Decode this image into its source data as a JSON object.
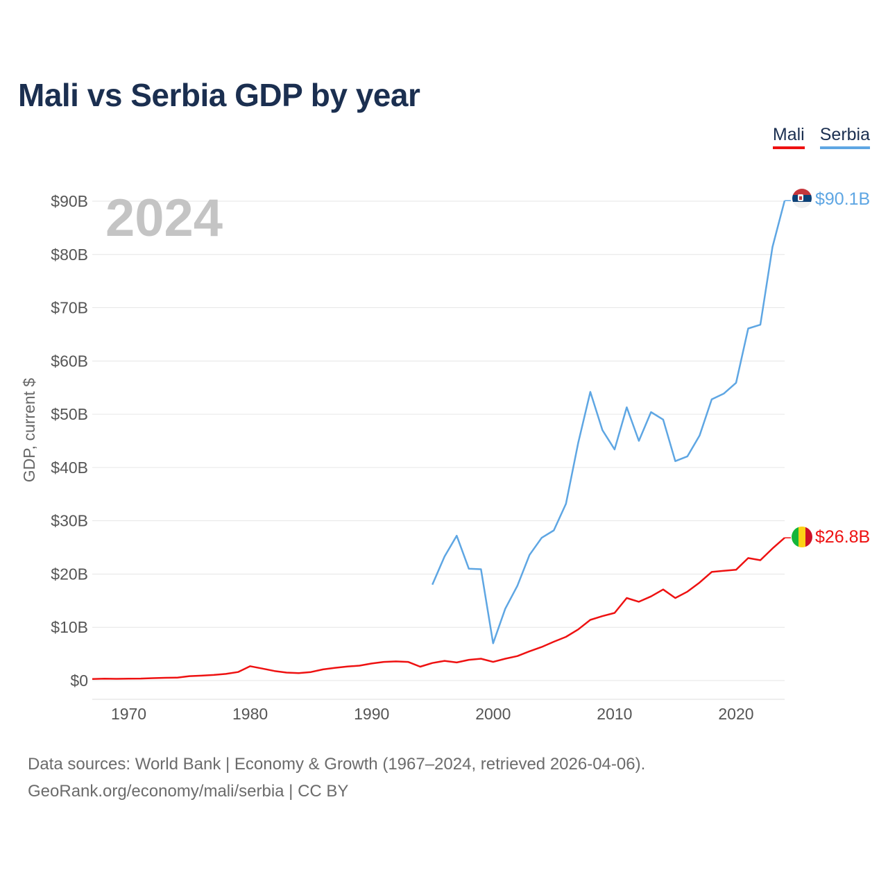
{
  "title": "Mali vs Serbia GDP by year",
  "source": {
    "line1": "Data sources: World Bank | Economy & Growth (1967–2024, retrieved 2026-04-06).",
    "line2": "GeoRank.org/economy/mali/serbia | CC BY"
  },
  "chart_data": {
    "type": "line",
    "title": "Mali vs Serbia GDP by year",
    "ylabel": "GDP, current $",
    "xlabel": "",
    "year_label": "2024",
    "xlim": [
      1967,
      2024
    ],
    "ylim": [
      0,
      90
    ],
    "y_unit": "billion current US$",
    "x_ticks": [
      1970,
      1980,
      1990,
      2000,
      2010,
      2020
    ],
    "y_ticks": [
      0,
      10,
      20,
      30,
      40,
      50,
      60,
      70,
      80,
      90
    ],
    "y_tick_labels": [
      "$0",
      "$10B",
      "$20B",
      "$30B",
      "$40B",
      "$50B",
      "$60B",
      "$70B",
      "$80B",
      "$90B"
    ],
    "grid": true,
    "legend": "top-right",
    "series": [
      {
        "name": "Mali",
        "color": "#ee1111",
        "end_label": "$26.8B",
        "flag": "mali-flag",
        "x": [
          1967,
          1968,
          1969,
          1970,
          1971,
          1972,
          1973,
          1974,
          1975,
          1976,
          1977,
          1978,
          1979,
          1980,
          1981,
          1982,
          1983,
          1984,
          1985,
          1986,
          1987,
          1988,
          1989,
          1990,
          1991,
          1992,
          1993,
          1994,
          1995,
          1996,
          1997,
          1998,
          1999,
          2000,
          2001,
          2002,
          2003,
          2004,
          2005,
          2006,
          2007,
          2008,
          2009,
          2010,
          2011,
          2012,
          2013,
          2014,
          2015,
          2016,
          2017,
          2018,
          2019,
          2020,
          2021,
          2022,
          2023,
          2024
        ],
        "values": [
          0.3,
          0.35,
          0.33,
          0.35,
          0.38,
          0.45,
          0.52,
          0.55,
          0.83,
          0.92,
          1.05,
          1.25,
          1.6,
          2.7,
          2.25,
          1.8,
          1.5,
          1.4,
          1.6,
          2.1,
          2.4,
          2.65,
          2.8,
          3.2,
          3.5,
          3.6,
          3.5,
          2.6,
          3.3,
          3.7,
          3.4,
          3.9,
          4.1,
          3.5,
          4.1,
          4.6,
          5.5,
          6.3,
          7.3,
          8.2,
          9.6,
          11.4,
          12.1,
          12.7,
          15.5,
          14.8,
          15.8,
          17.1,
          15.5,
          16.7,
          18.4,
          20.4,
          20.6,
          20.8,
          23.0,
          22.6,
          24.8,
          26.8
        ]
      },
      {
        "name": "Serbia",
        "color": "#5ea6e3",
        "end_label": "$90.1B",
        "flag": "serbia-flag",
        "x": [
          1995,
          1996,
          1997,
          1998,
          1999,
          2000,
          2001,
          2002,
          2003,
          2004,
          2005,
          2006,
          2007,
          2008,
          2009,
          2010,
          2011,
          2012,
          2013,
          2014,
          2015,
          2016,
          2017,
          2018,
          2019,
          2020,
          2021,
          2022,
          2023,
          2024
        ],
        "values": [
          18.0,
          23.3,
          27.2,
          21.0,
          20.9,
          7.0,
          13.5,
          17.8,
          23.6,
          26.8,
          28.2,
          33.2,
          44.6,
          54.2,
          47.0,
          43.4,
          51.3,
          45.0,
          50.4,
          49.0,
          41.2,
          42.1,
          46.0,
          52.8,
          53.9,
          55.9,
          66.1,
          66.8,
          81.4,
          90.1
        ]
      }
    ]
  }
}
